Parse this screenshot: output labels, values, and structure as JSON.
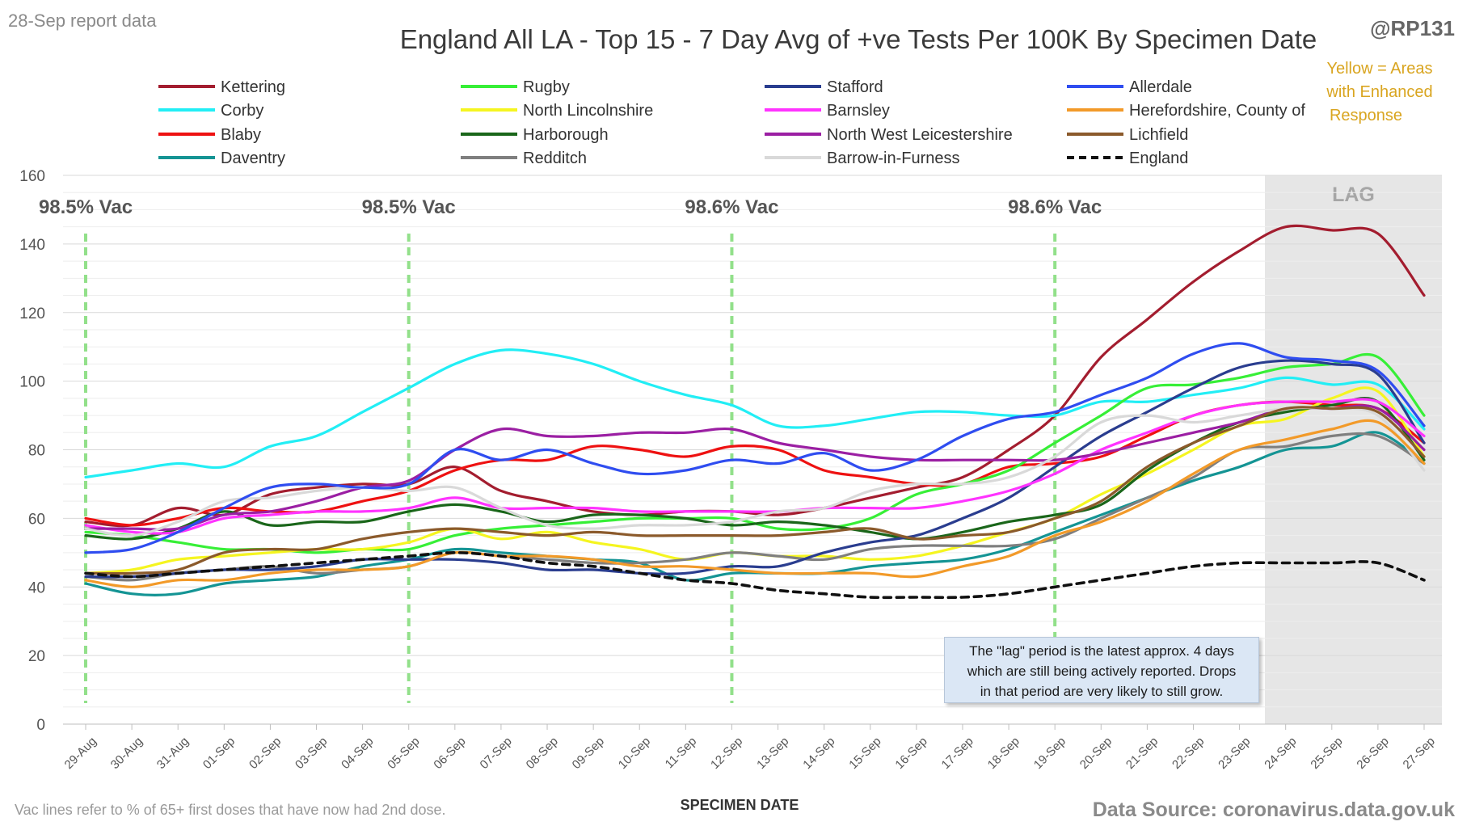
{
  "header": {
    "report_date": "28-Sep report data",
    "handle": "@RP131",
    "yellow_note": [
      "Yellow = Areas",
      "with Enhanced",
      "Response"
    ]
  },
  "footer": {
    "vac_note": "Vac lines refer to % of 65+ first doses that have now had 2nd dose.",
    "source": "Data Source: coronavirus.data.gov.uk"
  },
  "lag_note": [
    "The \"lag\" period is the latest approx. 4 days",
    "which are still being actively reported.  Drops",
    "in that period are very likely to still grow."
  ],
  "colors": {
    "vac_line": "#92e08a",
    "lag_shade": "#e6e6e6",
    "title": "#3a3a3a",
    "yellow_note": "#d9a520"
  },
  "chart_data": {
    "type": "line",
    "title": "England All LA - Top 15 - 7 Day Avg of +ve Tests Per 100K By Specimen Date",
    "xlabel": "SPECIMEN DATE",
    "ylabel": "",
    "ylim": [
      0,
      160
    ],
    "yticks": [
      0,
      20,
      40,
      60,
      80,
      100,
      120,
      140,
      160
    ],
    "grid": true,
    "legend_position": "top",
    "x": [
      "29-Aug",
      "30-Aug",
      "31-Aug",
      "01-Sep",
      "02-Sep",
      "03-Sep",
      "04-Sep",
      "05-Sep",
      "06-Sep",
      "07-Sep",
      "08-Sep",
      "09-Sep",
      "10-Sep",
      "11-Sep",
      "12-Sep",
      "13-Sep",
      "14-Sep",
      "15-Sep",
      "16-Sep",
      "17-Sep",
      "18-Sep",
      "19-Sep",
      "20-Sep",
      "21-Sep",
      "22-Sep",
      "23-Sep",
      "24-Sep",
      "25-Sep",
      "26-Sep",
      "27-Sep"
    ],
    "lag_region": {
      "from": "24-Sep",
      "to": "27-Sep",
      "label": "LAG"
    },
    "vac_lines": [
      {
        "x": "29-Aug",
        "label": "98.5% Vac"
      },
      {
        "x": "05-Sep",
        "label": "98.5% Vac"
      },
      {
        "x": "12-Sep",
        "label": "98.6% Vac"
      },
      {
        "x": "19-Sep",
        "label": "98.6% Vac"
      }
    ],
    "series": [
      {
        "name": "Kettering",
        "color": "#a31d2f",
        "values": [
          59,
          58,
          63,
          61,
          67,
          69,
          70,
          70,
          75,
          68,
          65,
          62,
          61,
          62,
          62,
          61,
          63,
          66,
          69,
          72,
          80,
          90,
          107,
          118,
          129,
          138,
          145,
          144,
          143,
          125
        ]
      },
      {
        "name": "Corby",
        "color": "#22eef5",
        "values": [
          72,
          74,
          76,
          75,
          81,
          84,
          91,
          98,
          105,
          109,
          108,
          105,
          100,
          96,
          93,
          87,
          87,
          89,
          91,
          91,
          90,
          90,
          94,
          94,
          96,
          98,
          101,
          99,
          99,
          86
        ]
      },
      {
        "name": "Blaby",
        "color": "#ee1111",
        "values": [
          60,
          58,
          60,
          63,
          62,
          62,
          65,
          68,
          74,
          77,
          77,
          81,
          80,
          78,
          81,
          80,
          74,
          72,
          70,
          70,
          75,
          76,
          78,
          84,
          90,
          93,
          94,
          93,
          92,
          82
        ]
      },
      {
        "name": "Daventry",
        "color": "#149494",
        "values": [
          41,
          38,
          38,
          41,
          42,
          43,
          46,
          48,
          51,
          50,
          49,
          48,
          47,
          42,
          44,
          44,
          44,
          46,
          47,
          48,
          51,
          56,
          61,
          66,
          71,
          75,
          80,
          81,
          85,
          76
        ]
      },
      {
        "name": "Rugby",
        "color": "#37ef37",
        "values": [
          56,
          55,
          53,
          51,
          51,
          50,
          51,
          51,
          55,
          57,
          58,
          59,
          60,
          60,
          60,
          57,
          57,
          60,
          67,
          70,
          74,
          82,
          90,
          98,
          99,
          101,
          104,
          105,
          107,
          90
        ]
      },
      {
        "name": "North Lincolnshire",
        "color": "#f5f520",
        "values": [
          44,
          45,
          48,
          49,
          50,
          51,
          51,
          53,
          57,
          54,
          56,
          53,
          51,
          48,
          50,
          49,
          49,
          48,
          49,
          52,
          56,
          60,
          67,
          73,
          80,
          87,
          89,
          95,
          97,
          78
        ]
      },
      {
        "name": "Harborough",
        "color": "#1a661a",
        "values": [
          55,
          54,
          57,
          62,
          58,
          59,
          59,
          62,
          64,
          62,
          59,
          61,
          61,
          60,
          58,
          59,
          58,
          56,
          54,
          56,
          59,
          61,
          64,
          74,
          82,
          88,
          91,
          93,
          94,
          77
        ]
      },
      {
        "name": "Redditch",
        "color": "#7f7f7f",
        "values": [
          43,
          42,
          44,
          45,
          46,
          44,
          45,
          46,
          50,
          49,
          48,
          47,
          47,
          48,
          50,
          49,
          48,
          51,
          52,
          52,
          52,
          54,
          60,
          66,
          72,
          80,
          81,
          84,
          84,
          76
        ]
      },
      {
        "name": "Stafford",
        "color": "#2a3d8f",
        "values": [
          43,
          43,
          44,
          45,
          45,
          46,
          48,
          48,
          48,
          47,
          45,
          45,
          44,
          44,
          46,
          46,
          50,
          53,
          55,
          60,
          66,
          75,
          84,
          91,
          98,
          104,
          106,
          105,
          102,
          82
        ]
      },
      {
        "name": "Barnsley",
        "color": "#ff33ff",
        "values": [
          58,
          56,
          56,
          60,
          61,
          62,
          62,
          63,
          66,
          63,
          63,
          63,
          62,
          62,
          62,
          62,
          63,
          63,
          63,
          65,
          68,
          73,
          80,
          85,
          90,
          93,
          94,
          94,
          94,
          84
        ]
      },
      {
        "name": "North West Leicestershire",
        "color": "#9b1fa3",
        "values": [
          57,
          57,
          57,
          61,
          62,
          65,
          69,
          71,
          80,
          86,
          84,
          84,
          85,
          85,
          86,
          82,
          80,
          78,
          77,
          77,
          77,
          77,
          79,
          82,
          85,
          88,
          92,
          92,
          92,
          80
        ]
      },
      {
        "name": "Barrow-in-Furness",
        "color": "#d9d9d9",
        "values": [
          57,
          55,
          59,
          65,
          66,
          68,
          69,
          68,
          69,
          63,
          58,
          57,
          58,
          58,
          59,
          62,
          63,
          68,
          70,
          70,
          72,
          78,
          88,
          90,
          88,
          90,
          92,
          92,
          90,
          74
        ]
      },
      {
        "name": "Allerdale",
        "color": "#2f4df0",
        "values": [
          50,
          51,
          56,
          63,
          69,
          70,
          69,
          70,
          80,
          77,
          80,
          76,
          73,
          74,
          77,
          76,
          79,
          74,
          77,
          84,
          89,
          91,
          96,
          101,
          108,
          111,
          107,
          106,
          103,
          87
        ]
      },
      {
        "name": "Herefordshire, County of",
        "color": "#f29a29",
        "values": [
          42,
          40,
          42,
          42,
          44,
          45,
          45,
          46,
          50,
          49,
          49,
          48,
          46,
          46,
          45,
          44,
          44,
          44,
          43,
          46,
          49,
          55,
          59,
          65,
          73,
          80,
          83,
          86,
          88,
          76
        ]
      },
      {
        "name": "Lichfield",
        "color": "#8b5a2b",
        "values": [
          44,
          44,
          45,
          50,
          51,
          51,
          54,
          56,
          57,
          56,
          55,
          56,
          55,
          55,
          55,
          55,
          56,
          57,
          54,
          55,
          56,
          60,
          65,
          75,
          82,
          87,
          92,
          92,
          91,
          78
        ]
      },
      {
        "name": "England",
        "color": "#111111",
        "dashed": true,
        "values": [
          44,
          43,
          44,
          45,
          46,
          47,
          48,
          49,
          50,
          49,
          47,
          46,
          44,
          42,
          41,
          39,
          38,
          37,
          37,
          37,
          38,
          40,
          42,
          44,
          46,
          47,
          47,
          47,
          47,
          42
        ]
      }
    ]
  }
}
